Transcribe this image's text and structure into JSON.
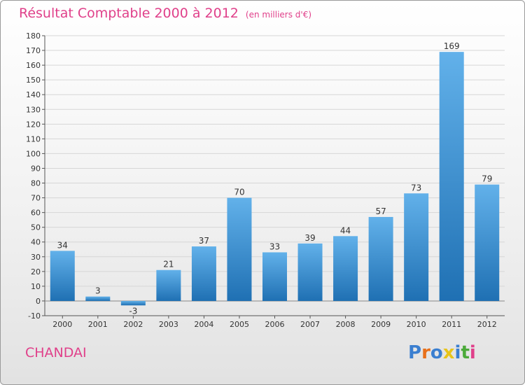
{
  "header": {
    "title": "Résultat Comptable 2000 à 2012",
    "subtitle": "(en milliers d'€)"
  },
  "footer": {
    "commune": "CHANDAI",
    "brand": "Proxiti",
    "brand_letters": [
      {
        "ch": "P",
        "color": "#3b7fd0"
      },
      {
        "ch": "r",
        "color": "#e8701a"
      },
      {
        "ch": "o",
        "color": "#3b7fd0"
      },
      {
        "ch": "x",
        "color": "#e8c41a"
      },
      {
        "ch": "i",
        "color": "#3b7fd0"
      },
      {
        "ch": "t",
        "color": "#4caa3a"
      },
      {
        "ch": "i",
        "color": "#e0408a"
      }
    ]
  },
  "colors": {
    "accent": "#e0408a",
    "bar_top": "#62b1ea",
    "bar_bottom": "#1f70b3",
    "grid": "#d6d6d6"
  },
  "chart_data": {
    "type": "bar",
    "title": "Résultat Comptable 2000 à 2012",
    "subtitle": "(en milliers d'€)",
    "categories": [
      "2000",
      "2001",
      "2002",
      "2003",
      "2004",
      "2005",
      "2006",
      "2007",
      "2008",
      "2009",
      "2010",
      "2011",
      "2012"
    ],
    "values": [
      34,
      3,
      -3,
      21,
      37,
      70,
      33,
      39,
      44,
      57,
      73,
      169,
      79
    ],
    "ylim": [
      -10,
      180
    ],
    "ytick_step": 10,
    "grid": true,
    "legend": "none"
  }
}
